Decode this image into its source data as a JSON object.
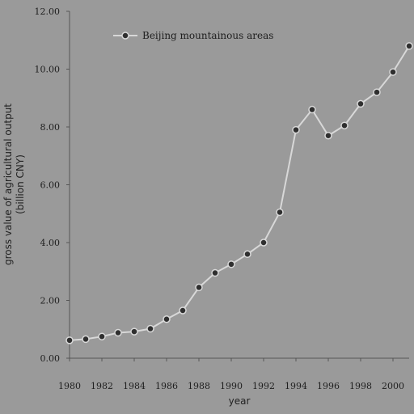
{
  "chart_data": {
    "type": "line",
    "xlabel": "year",
    "ylabel_line1": "gross value of agricultural output",
    "ylabel_line2": "(billion CNY)",
    "ylim": [
      0,
      12
    ],
    "xlim": [
      1980,
      2001
    ],
    "yticks": [
      "0.00",
      "2.00",
      "4.00",
      "6.00",
      "8.00",
      "10.00",
      "12.00"
    ],
    "xticks": [
      "1980",
      "1982",
      "1984",
      "1986",
      "1988",
      "1990",
      "1992",
      "1994",
      "1996",
      "1998",
      "2000"
    ],
    "legend": "top-left",
    "series": [
      {
        "name": "Beijing mountainous areas",
        "x": [
          1980,
          1981,
          1982,
          1983,
          1984,
          1985,
          1986,
          1987,
          1988,
          1989,
          1990,
          1991,
          1992,
          1993,
          1994,
          1995,
          1996,
          1997,
          1998,
          1999,
          2000,
          2001
        ],
        "y": [
          0.62,
          0.66,
          0.75,
          0.88,
          0.92,
          1.02,
          1.35,
          1.65,
          2.45,
          2.95,
          3.25,
          3.6,
          4.0,
          5.05,
          7.9,
          8.6,
          7.7,
          8.05,
          8.8,
          9.2,
          9.9,
          10.8
        ]
      }
    ],
    "colors": {
      "background": "#9a9a9a",
      "line": "#d8d8d8",
      "marker": "#2f2f2f",
      "text": "#1e1e1e"
    }
  }
}
